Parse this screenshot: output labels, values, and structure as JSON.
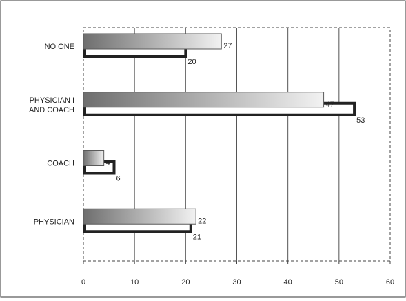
{
  "chart_data": {
    "type": "bar",
    "orientation": "horizontal",
    "categories": [
      "NO ONE",
      "PHYSICIAN I AND COACH",
      "COACH",
      "PHYSICIAN"
    ],
    "category_label_lines": [
      [
        "NO ONE"
      ],
      [
        "PHYSICIAN I",
        "AND COACH"
      ],
      [
        "COACH"
      ],
      [
        "PHYSICIAN"
      ]
    ],
    "series": [
      {
        "style": "gradient-gray",
        "values": [
          27,
          47,
          4,
          22
        ]
      },
      {
        "style": "white-outlined",
        "values": [
          20,
          53,
          6,
          21
        ]
      }
    ],
    "value_labels": [
      [
        "27",
        "47",
        "4",
        "22"
      ],
      [
        "20",
        "53",
        "6",
        "21"
      ]
    ],
    "xlim": [
      0,
      60
    ],
    "xticks": [
      0,
      10,
      20,
      30,
      40,
      50,
      60
    ],
    "xtick_labels": [
      "0",
      "10",
      "20",
      "30",
      "40",
      "50",
      "60"
    ],
    "grid": "vertical",
    "legend": "none",
    "colors": {
      "outline": "#222222",
      "gradient_dark": "#6e6e6e",
      "gradient_light": "#f2f2f2",
      "border": "#333333"
    }
  }
}
